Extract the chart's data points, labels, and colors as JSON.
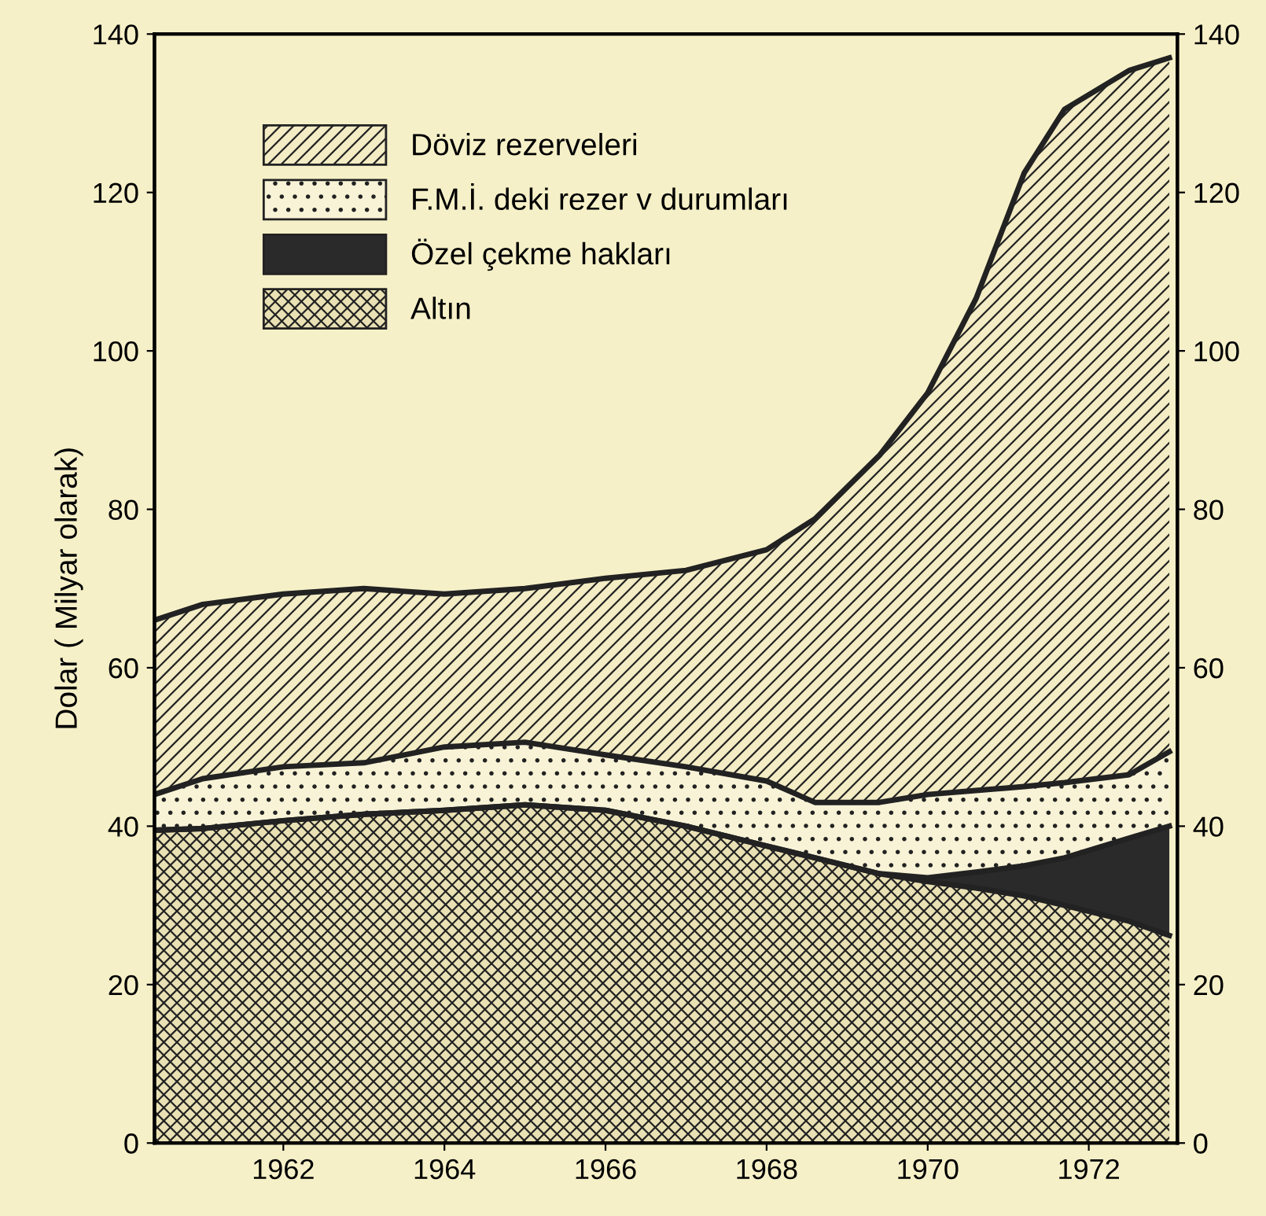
{
  "chart_data": {
    "type": "area",
    "stacked": true,
    "ylabel": "Dolar ( Milyar olarak)",
    "x": [
      1960.4,
      1961,
      1962,
      1963,
      1964,
      1965,
      1966,
      1967,
      1968,
      1968.6,
      1969.4,
      1970,
      1970.6,
      1971.2,
      1971.7,
      1972.5,
      1973
    ],
    "series": [
      {
        "name": "Altın",
        "color": "#e9e1b4",
        "values": [
          39.5,
          39.7,
          40.7,
          41.5,
          42,
          42.7,
          42,
          40,
          37.5,
          36,
          34,
          33,
          32.2,
          31.2,
          30,
          28,
          26.2
        ]
      },
      {
        "name": "Özel çekme hakları",
        "color": "#2a2a2a",
        "values": [
          0,
          0,
          0,
          0,
          0,
          0,
          0,
          0,
          0,
          0,
          0,
          0.5,
          2,
          3.8,
          6,
          10.5,
          13.8
        ]
      },
      {
        "name": "F.M.İ. deki rezer v durumları",
        "color": "#f8f3d6",
        "values": [
          4.5,
          6.3,
          6.8,
          6.5,
          8,
          7.9,
          7,
          7.5,
          8.2,
          7,
          9,
          10.5,
          10.3,
          10,
          9.5,
          8,
          9.4
        ]
      },
      {
        "name": "Döviz rezerveleri",
        "color": "#f3ecc4",
        "values": [
          22,
          22,
          21.8,
          22,
          19.3,
          19.4,
          22.3,
          24.8,
          29.2,
          35.8,
          43.8,
          50.7,
          62.1,
          77.5,
          85,
          88.9,
          87.6
        ]
      }
    ],
    "xlim": [
      1960.4,
      1973.1
    ],
    "xticks": [
      1962,
      1964,
      1966,
      1968,
      1970,
      1972
    ],
    "ylim": [
      0,
      140
    ],
    "yticks": [
      0,
      20,
      40,
      60,
      80,
      100,
      120,
      140
    ],
    "y2lim": [
      0,
      140
    ],
    "y2ticks": [
      0,
      20,
      40,
      60,
      80,
      100,
      120,
      140
    ],
    "grid": false,
    "legend": "top left"
  }
}
